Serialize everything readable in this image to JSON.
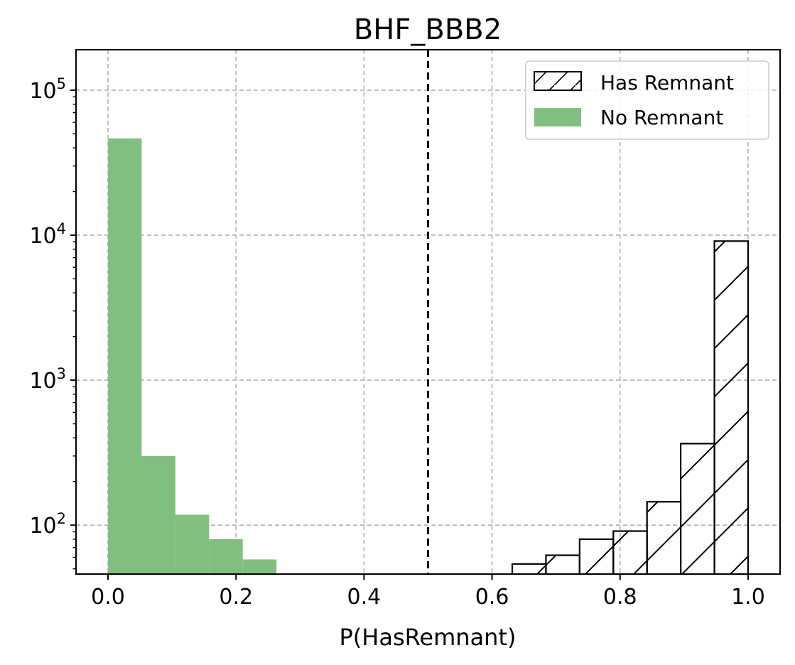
{
  "chart_data": {
    "type": "bar",
    "title": "BHF_BBB2",
    "xlabel": "P(HasRemnant)",
    "ylabel": "",
    "xlim": [
      -0.05,
      1.05
    ],
    "ylim": [
      46,
      190000
    ],
    "yscale": "log",
    "grid": true,
    "legend_position": "top-right",
    "x_ticks": [
      0.0,
      0.2,
      0.4,
      0.6,
      0.8,
      1.0
    ],
    "x_tick_labels": [
      "0.0",
      "0.2",
      "0.4",
      "0.6",
      "0.8",
      "1.0"
    ],
    "y_ticks": [
      100,
      1000,
      10000,
      100000
    ],
    "y_tick_labels": [
      {
        "base": "10",
        "exp": "2"
      },
      {
        "base": "10",
        "exp": "3"
      },
      {
        "base": "10",
        "exp": "4"
      },
      {
        "base": "10",
        "exp": "5"
      }
    ],
    "threshold": 0.5,
    "series": [
      {
        "name": "No Remnant",
        "color": "#81bf81",
        "style": "filled",
        "bins": [
          {
            "x0": 0.0,
            "x1": 0.0526,
            "value": 46500
          },
          {
            "x0": 0.0526,
            "x1": 0.1053,
            "value": 300
          },
          {
            "x0": 0.1053,
            "x1": 0.1579,
            "value": 118
          },
          {
            "x0": 0.1579,
            "x1": 0.2105,
            "value": 80
          },
          {
            "x0": 0.2105,
            "x1": 0.2632,
            "value": 58
          }
        ]
      },
      {
        "name": "Has Remnant",
        "color": "#000000",
        "style": "hatched",
        "bins": [
          {
            "x0": 0.6316,
            "x1": 0.6842,
            "value": 54
          },
          {
            "x0": 0.6842,
            "x1": 0.7368,
            "value": 62
          },
          {
            "x0": 0.7368,
            "x1": 0.7895,
            "value": 80
          },
          {
            "x0": 0.7895,
            "x1": 0.8421,
            "value": 91
          },
          {
            "x0": 0.8421,
            "x1": 0.8947,
            "value": 145
          },
          {
            "x0": 0.8947,
            "x1": 0.9474,
            "value": 365
          },
          {
            "x0": 0.9474,
            "x1": 1.0,
            "value": 9100
          }
        ]
      }
    ]
  }
}
